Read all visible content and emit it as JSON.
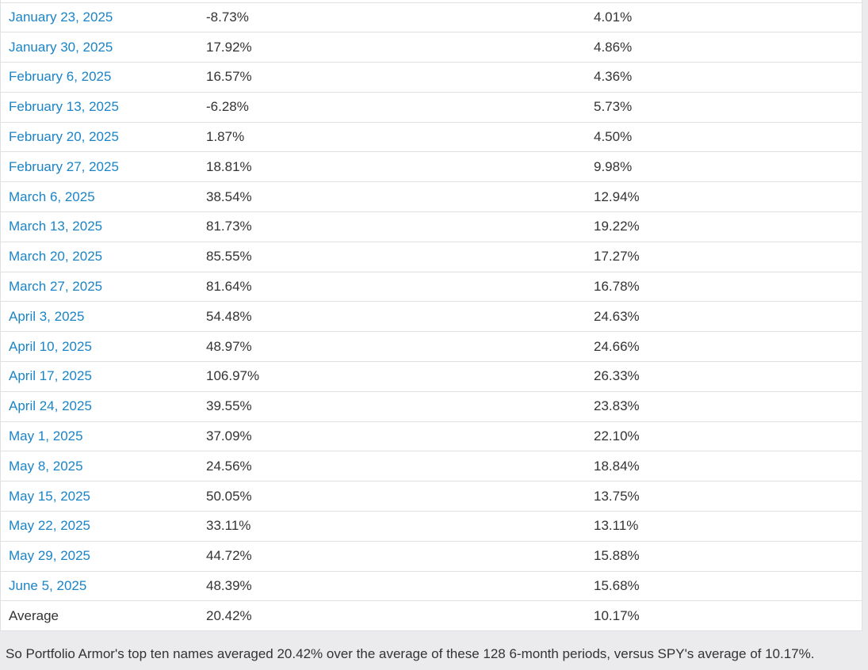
{
  "table": {
    "rows": [
      {
        "label": "January 23, 2025",
        "portfolio": "-8.73%",
        "spy": "4.01%",
        "link": true
      },
      {
        "label": "January 30, 2025",
        "portfolio": "17.92%",
        "spy": "4.86%",
        "link": true
      },
      {
        "label": "February 6, 2025",
        "portfolio": "16.57%",
        "spy": "4.36%",
        "link": true
      },
      {
        "label": "February 13, 2025",
        "portfolio": "-6.28%",
        "spy": "5.73%",
        "link": true
      },
      {
        "label": "February 20, 2025",
        "portfolio": "1.87%",
        "spy": "4.50%",
        "link": true
      },
      {
        "label": "February 27, 2025",
        "portfolio": "18.81%",
        "spy": "9.98%",
        "link": true
      },
      {
        "label": "March 6, 2025",
        "portfolio": "38.54%",
        "spy": "12.94%",
        "link": true
      },
      {
        "label": "March 13, 2025",
        "portfolio": "81.73%",
        "spy": "19.22%",
        "link": true
      },
      {
        "label": "March 20, 2025",
        "portfolio": "85.55%",
        "spy": "17.27%",
        "link": true
      },
      {
        "label": "March 27, 2025",
        "portfolio": "81.64%",
        "spy": "16.78%",
        "link": true
      },
      {
        "label": "April 3, 2025",
        "portfolio": "54.48%",
        "spy": "24.63%",
        "link": true
      },
      {
        "label": "April 10, 2025",
        "portfolio": "48.97%",
        "spy": "24.66%",
        "link": true
      },
      {
        "label": "April 17, 2025",
        "portfolio": "106.97%",
        "spy": "26.33%",
        "link": true
      },
      {
        "label": "April 24, 2025",
        "portfolio": "39.55%",
        "spy": "23.83%",
        "link": true
      },
      {
        "label": "May 1, 2025",
        "portfolio": "37.09%",
        "spy": "22.10%",
        "link": true
      },
      {
        "label": "May 8, 2025",
        "portfolio": "24.56%",
        "spy": "18.84%",
        "link": true
      },
      {
        "label": "May 15, 2025",
        "portfolio": "50.05%",
        "spy": "13.75%",
        "link": true
      },
      {
        "label": "May 22, 2025",
        "portfolio": "33.11%",
        "spy": "13.11%",
        "link": true
      },
      {
        "label": "May 29, 2025",
        "portfolio": "44.72%",
        "spy": "15.88%",
        "link": true
      },
      {
        "label": "June 5, 2025",
        "portfolio": "48.39%",
        "spy": "15.68%",
        "link": true
      },
      {
        "label": "Average",
        "portfolio": "20.42%",
        "spy": "10.17%",
        "link": false
      }
    ]
  },
  "footer": {
    "text": "So Portfolio Armor's top ten names averaged 20.42% over the average of these 128 6-month periods, versus SPY's average of 10.17%."
  },
  "colors": {
    "link_blue": "#1b84c6",
    "body_text": "#333333",
    "row_border": "#dfe0e4",
    "page_background": "#ebebed",
    "table_background": "#ffffff"
  }
}
